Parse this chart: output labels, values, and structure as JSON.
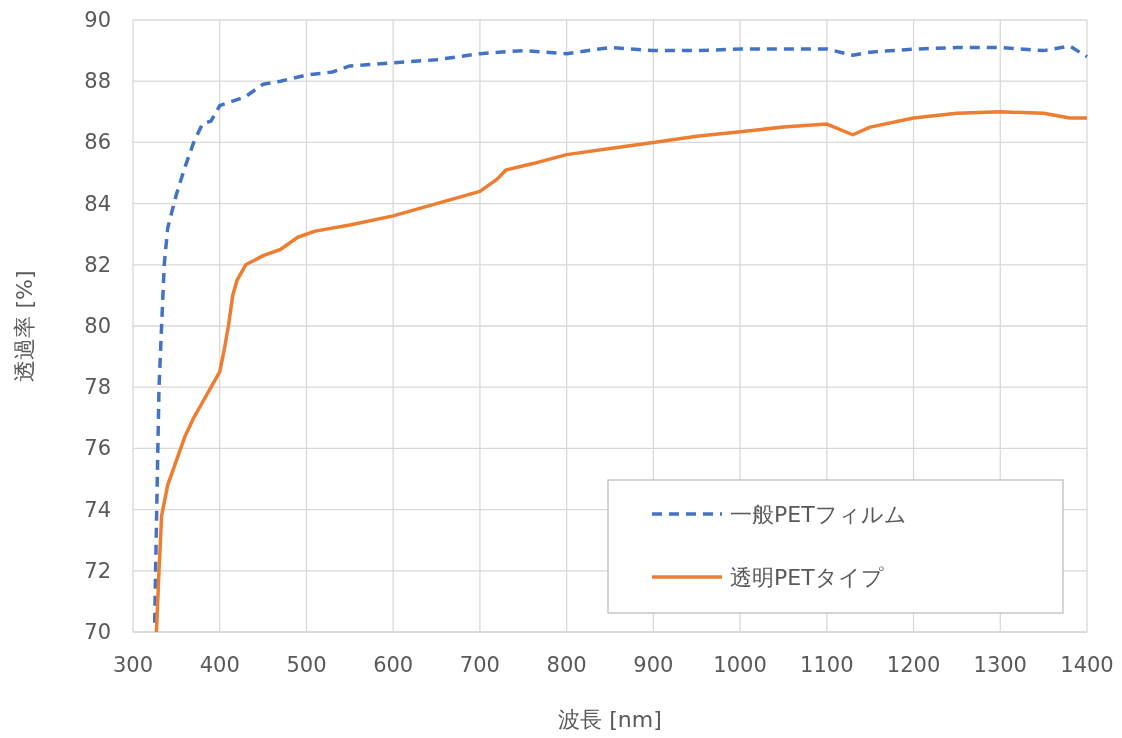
{
  "chart_data": {
    "type": "line",
    "xlabel": "波長 [nm]",
    "ylabel": "透過率 [%]",
    "xlim": [
      300,
      1400
    ],
    "ylim": [
      70,
      90
    ],
    "xticks": [
      300,
      400,
      500,
      600,
      700,
      800,
      900,
      1000,
      1100,
      1200,
      1300,
      1400
    ],
    "yticks": [
      70,
      72,
      74,
      76,
      78,
      80,
      82,
      84,
      86,
      88,
      90
    ],
    "grid": true,
    "legend": "bottom right",
    "series": [
      {
        "name": "一般PETフィルム",
        "color": "#4472c4",
        "line_style": "dashed",
        "x": [
          325,
          328,
          330,
          333,
          336,
          340,
          350,
          360,
          370,
          380,
          390,
          400,
          410,
          430,
          450,
          470,
          500,
          530,
          550,
          600,
          650,
          700,
          750,
          800,
          850,
          900,
          950,
          1000,
          1050,
          1100,
          1130,
          1150,
          1200,
          1250,
          1300,
          1350,
          1380,
          1400
        ],
        "values": [
          70.3,
          75,
          78,
          80,
          82,
          83.2,
          84.3,
          85.2,
          86,
          86.6,
          86.7,
          87.2,
          87.3,
          87.5,
          87.9,
          88,
          88.2,
          88.3,
          88.5,
          88.6,
          88.7,
          88.9,
          89,
          88.9,
          89.1,
          89,
          89,
          89.05,
          89.05,
          89.05,
          88.85,
          88.95,
          89.05,
          89.1,
          89.1,
          89,
          89.15,
          88.8
        ]
      },
      {
        "name": "透明PETタイプ",
        "color": "#ed7d31",
        "line_style": "solid",
        "x": [
          327,
          330,
          333,
          340,
          350,
          360,
          370,
          380,
          390,
          400,
          405,
          410,
          415,
          420,
          430,
          450,
          470,
          490,
          510,
          550,
          600,
          650,
          700,
          720,
          730,
          760,
          800,
          850,
          900,
          950,
          1000,
          1050,
          1100,
          1130,
          1150,
          1200,
          1250,
          1300,
          1350,
          1380,
          1400
        ],
        "values": [
          70,
          72,
          73.8,
          74.8,
          75.6,
          76.4,
          77,
          77.5,
          78,
          78.5,
          79.2,
          80,
          81,
          81.5,
          82,
          82.3,
          82.5,
          82.9,
          83.1,
          83.3,
          83.6,
          84,
          84.4,
          84.8,
          85.1,
          85.3,
          85.6,
          85.8,
          86,
          86.2,
          86.35,
          86.5,
          86.6,
          86.25,
          86.5,
          86.8,
          86.95,
          87,
          86.95,
          86.8,
          86.8
        ]
      }
    ]
  }
}
